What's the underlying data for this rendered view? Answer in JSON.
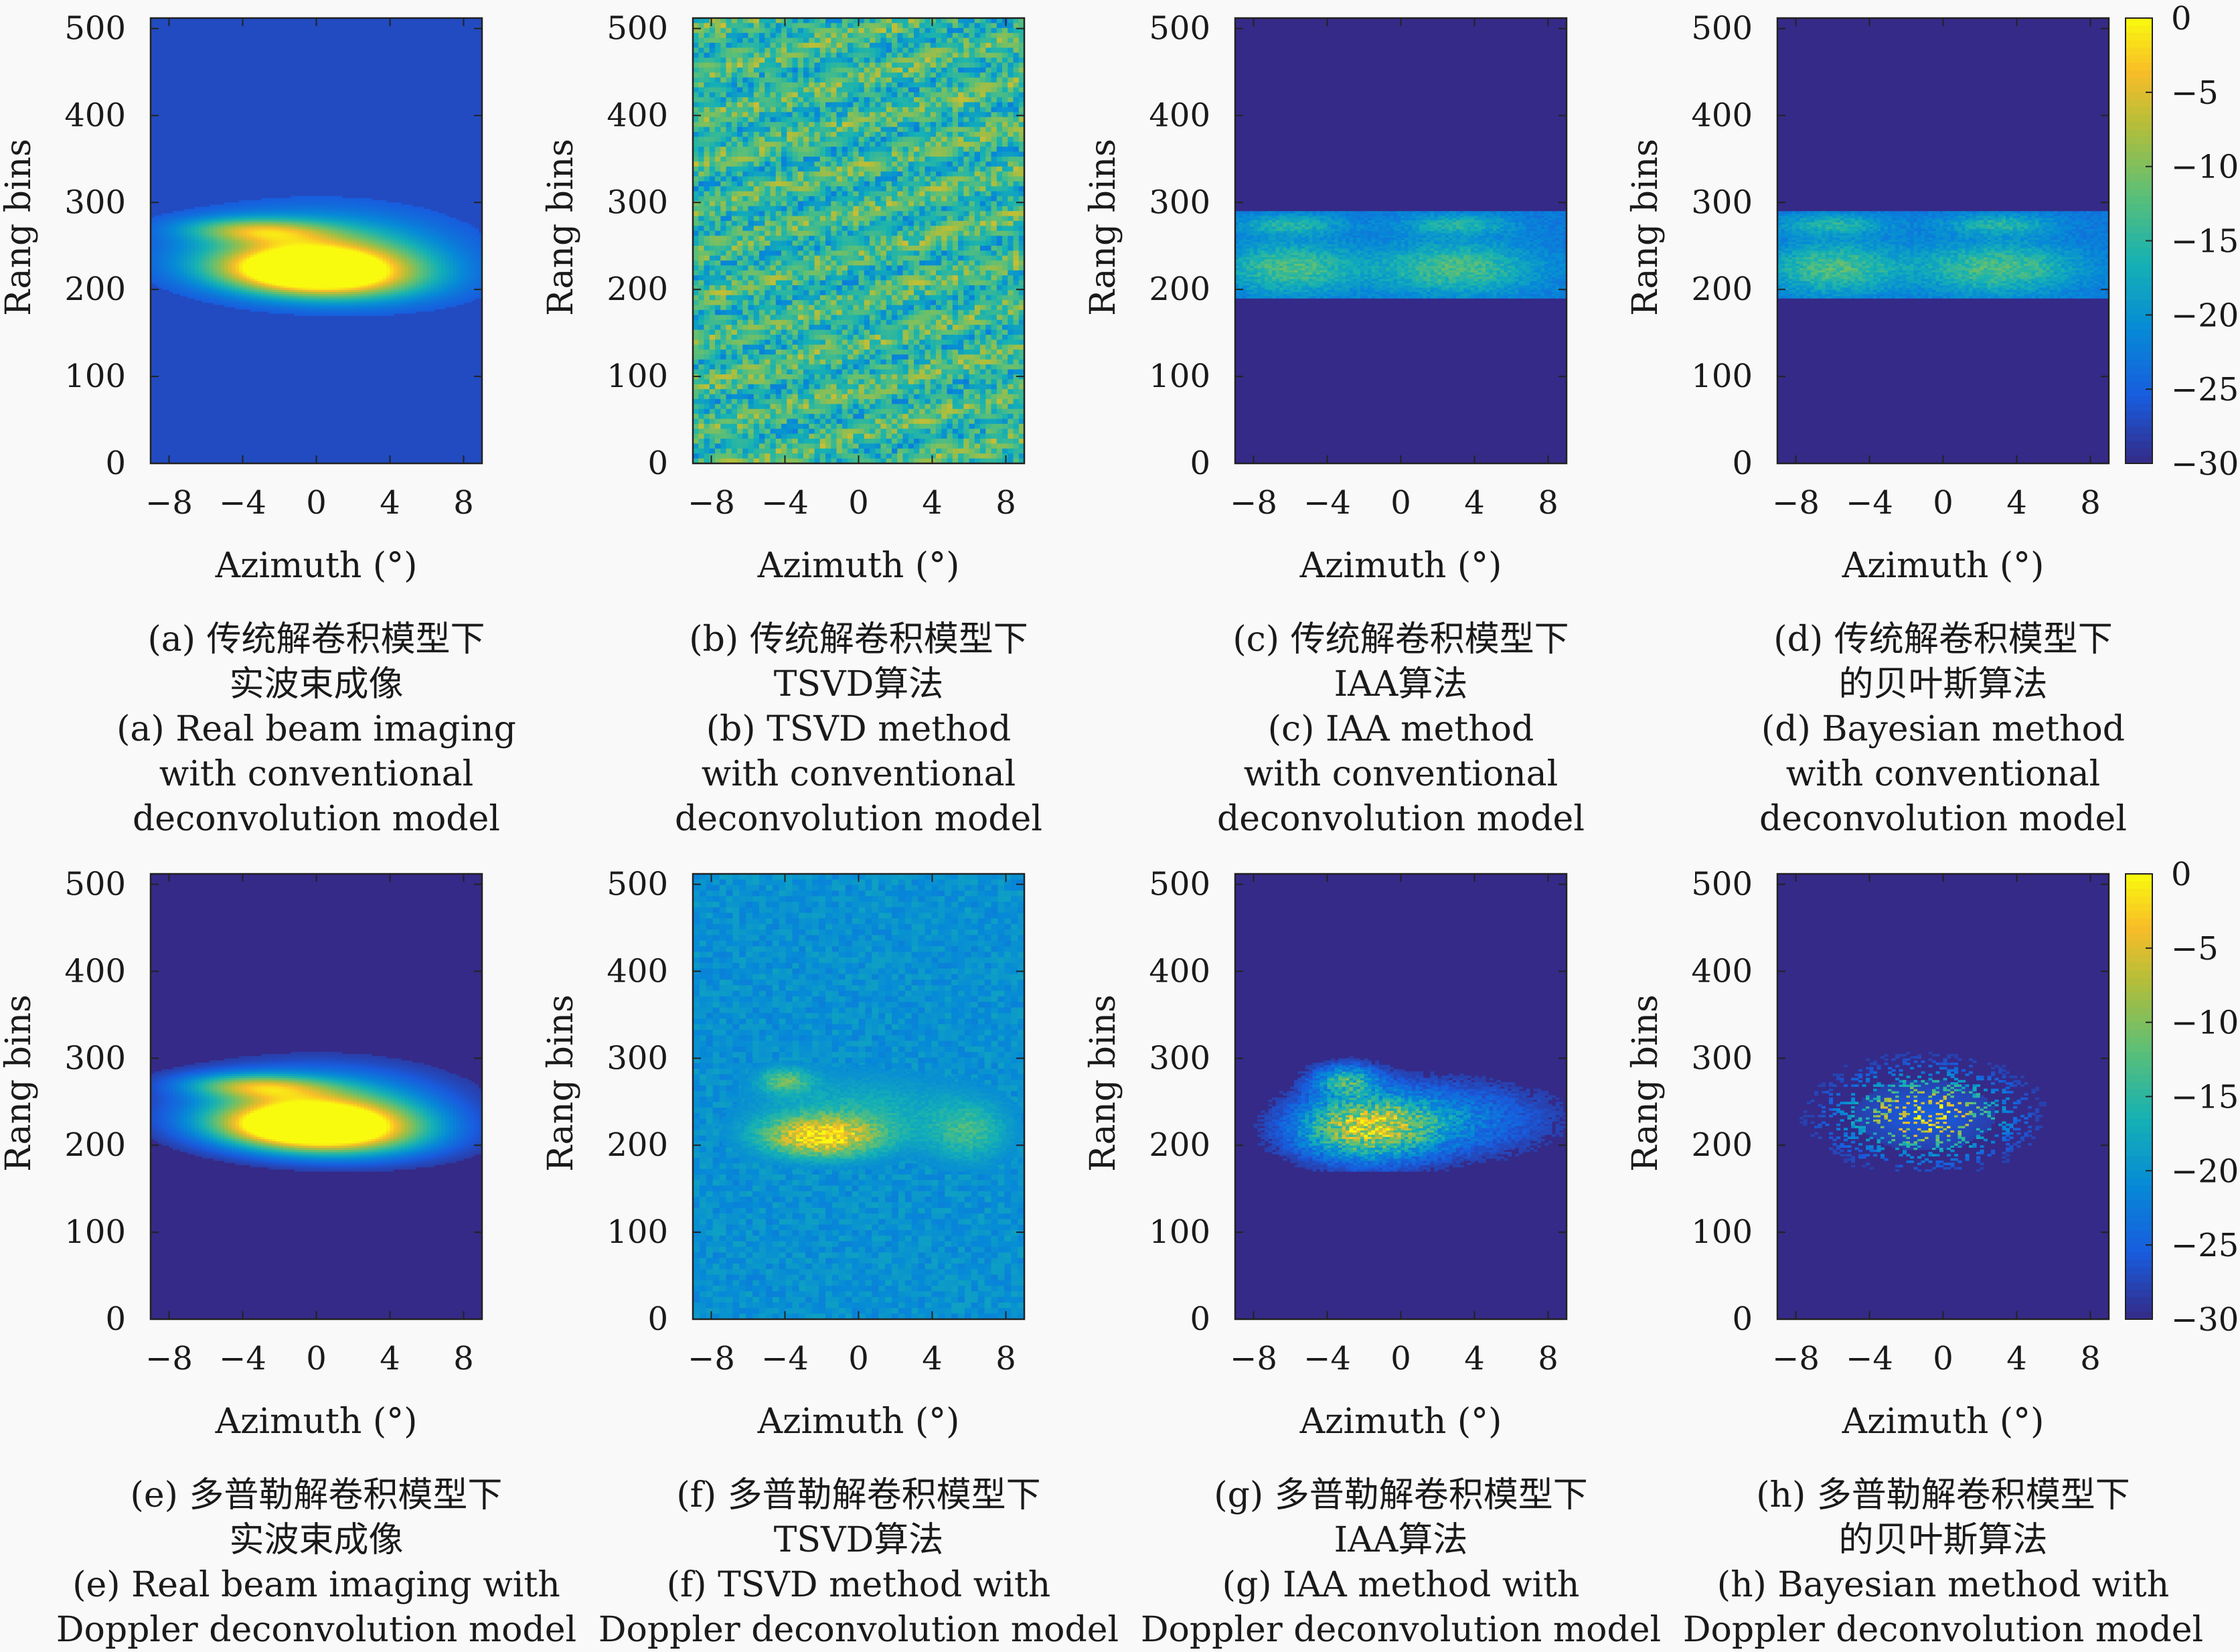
{
  "chart_data": [
    {
      "type": "heatmap",
      "panel": "a",
      "xlabel": "Azimuth (°)",
      "ylabel": "Rang bins",
      "xticks": [
        "−8",
        "−4",
        "0",
        "4",
        "8"
      ],
      "yticks": [
        "0",
        "100",
        "200",
        "300",
        "400",
        "500"
      ],
      "xlim": [
        -9,
        9
      ],
      "ylim": [
        0,
        512
      ],
      "zlim": [
        -30,
        0
      ],
      "background_level": -27,
      "target": "real-beam",
      "caption_lines": [
        "(a) 传统解卷积模型下",
        "实波束成像",
        "(a) Real beam imaging",
        "with conventional",
        "deconvolution model"
      ]
    },
    {
      "type": "heatmap",
      "panel": "b",
      "xlabel": "Azimuth (°)",
      "ylabel": "Rang bins",
      "xticks": [
        "−8",
        "−4",
        "0",
        "4",
        "8"
      ],
      "yticks": [
        "0",
        "100",
        "200",
        "300",
        "400",
        "500"
      ],
      "xlim": [
        -9,
        9
      ],
      "ylim": [
        0,
        512
      ],
      "zlim": [
        -30,
        0
      ],
      "background_level": -12,
      "target": "noise",
      "caption_lines": [
        "(b) 传统解卷积模型下",
        "TSVD算法",
        "(b) TSVD method",
        "with conventional",
        "deconvolution model"
      ]
    },
    {
      "type": "heatmap",
      "panel": "c",
      "xlabel": "Azimuth (°)",
      "ylabel": "Rang bins",
      "xticks": [
        "−8",
        "−4",
        "0",
        "4",
        "8"
      ],
      "yticks": [
        "0",
        "100",
        "200",
        "300",
        "400",
        "500"
      ],
      "xlim": [
        -9,
        9
      ],
      "ylim": [
        0,
        512
      ],
      "zlim": [
        -30,
        0
      ],
      "background_level": -30,
      "target": "band",
      "caption_lines": [
        "(c) 传统解卷积模型下",
        "IAA算法",
        "(c) IAA method",
        "with conventional",
        "deconvolution model"
      ]
    },
    {
      "type": "heatmap",
      "panel": "d",
      "xlabel": "Azimuth (°)",
      "ylabel": "Rang bins",
      "xticks": [
        "−8",
        "−4",
        "0",
        "4",
        "8"
      ],
      "yticks": [
        "0",
        "100",
        "200",
        "300",
        "400",
        "500"
      ],
      "xlim": [
        -9,
        9
      ],
      "ylim": [
        0,
        512
      ],
      "zlim": [
        -30,
        0
      ],
      "background_level": -30,
      "target": "band",
      "colorbar": {
        "ticks": [
          "0",
          "−5",
          "−10",
          "−15",
          "−20",
          "−25",
          "−30"
        ]
      },
      "caption_lines": [
        "(d) 传统解卷积模型下",
        "的贝叶斯算法",
        "(d) Bayesian method",
        "with conventional",
        "deconvolution model"
      ]
    },
    {
      "type": "heatmap",
      "panel": "e",
      "xlabel": "Azimuth (°)",
      "ylabel": "Rang bins",
      "xticks": [
        "−8",
        "−4",
        "0",
        "4",
        "8"
      ],
      "yticks": [
        "0",
        "100",
        "200",
        "300",
        "400",
        "500"
      ],
      "xlim": [
        -9,
        9
      ],
      "ylim": [
        0,
        512
      ],
      "zlim": [
        -30,
        0
      ],
      "background_level": -30,
      "target": "real-beam",
      "caption_lines": [
        "(e) 多普勒解卷积模型下",
        "实波束成像",
        "(e) Real beam imaging with",
        "Doppler deconvolution model"
      ]
    },
    {
      "type": "heatmap",
      "panel": "f",
      "xlabel": "Azimuth (°)",
      "ylabel": "Rang bins",
      "xticks": [
        "−8",
        "−4",
        "0",
        "4",
        "8"
      ],
      "yticks": [
        "0",
        "100",
        "200",
        "300",
        "400",
        "500"
      ],
      "xlim": [
        -9,
        9
      ],
      "ylim": [
        0,
        512
      ],
      "zlim": [
        -30,
        0
      ],
      "background_level": -22,
      "target": "tsvd-doppler",
      "caption_lines": [
        "(f) 多普勒解卷积模型下",
        "TSVD算法",
        "(f) TSVD method with",
        "Doppler deconvolution model"
      ]
    },
    {
      "type": "heatmap",
      "panel": "g",
      "xlabel": "Azimuth (°)",
      "ylabel": "Rang bins",
      "xticks": [
        "−8",
        "−4",
        "0",
        "4",
        "8"
      ],
      "yticks": [
        "0",
        "100",
        "200",
        "300",
        "400",
        "500"
      ],
      "xlim": [
        -9,
        9
      ],
      "ylim": [
        0,
        512
      ],
      "zlim": [
        -30,
        0
      ],
      "background_level": -30,
      "target": "iaa-doppler",
      "caption_lines": [
        "(g) 多普勒解卷积模型下",
        "IAA算法",
        "(g) IAA method with",
        "Doppler deconvolution model"
      ]
    },
    {
      "type": "heatmap",
      "panel": "h",
      "xlabel": "Azimuth (°)",
      "ylabel": "Rang bins",
      "xticks": [
        "−8",
        "−4",
        "0",
        "4",
        "8"
      ],
      "yticks": [
        "0",
        "100",
        "200",
        "300",
        "400",
        "500"
      ],
      "xlim": [
        -9,
        9
      ],
      "ylim": [
        0,
        512
      ],
      "zlim": [
        -30,
        0
      ],
      "background_level": -30,
      "target": "sparse",
      "colorbar": {
        "ticks": [
          "0",
          "−5",
          "−10",
          "−15",
          "−20",
          "−25",
          "−30"
        ]
      },
      "caption_lines": [
        "(h) 多普勒解卷积模型下",
        "的贝叶斯算法",
        "(h) Bayesian method with",
        "Doppler deconvolution model"
      ]
    }
  ]
}
